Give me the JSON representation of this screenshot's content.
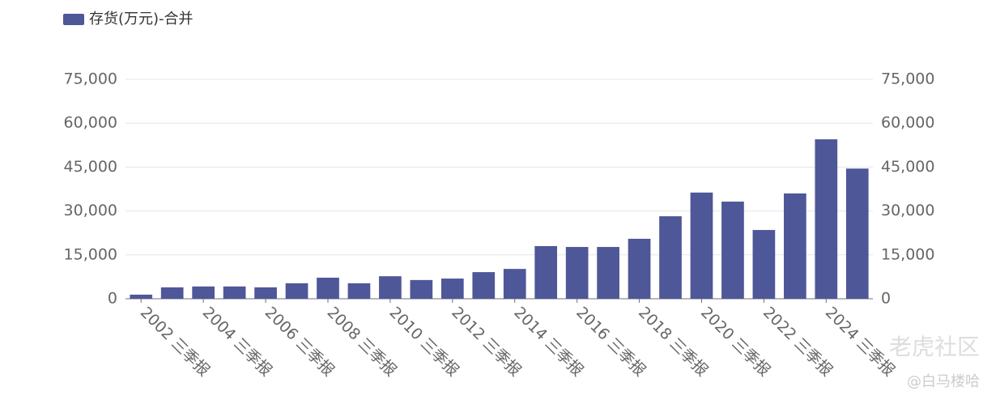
{
  "chart_data": {
    "type": "bar",
    "legend": "存货(万元)-合并",
    "watermark": "老虎社区",
    "credit": "@白马楼哈",
    "categories": [
      "2002 三季报",
      null,
      "2004 三季报",
      null,
      "2006 三季报",
      null,
      "2008 三季报",
      null,
      "2010 三季报",
      null,
      "2012 三季报",
      null,
      "2014 三季报",
      null,
      "2016 三季报",
      null,
      "2018 三季报",
      null,
      "2020 三季报",
      null,
      "2022 三季报",
      null,
      "2024 三季报",
      null
    ],
    "values": [
      1400,
      3900,
      4200,
      4200,
      3900,
      5300,
      7200,
      5300,
      7700,
      6400,
      6900,
      9100,
      10200,
      18000,
      17700,
      17700,
      20500,
      28200,
      36300,
      33200,
      23500,
      36000,
      54500,
      44500
    ],
    "color": "#4e5797",
    "ylim": [
      0,
      75000
    ],
    "yticks": [
      0,
      {
        "value": 15000,
        "label": "15,000"
      },
      {
        "value": 30000,
        "label": "30,000"
      },
      {
        "value": 45000,
        "label": "45,000"
      },
      {
        "value": 60000,
        "label": "60,000"
      },
      {
        "value": 75000,
        "label": "75,000"
      }
    ],
    "y2lim": [
      0,
      75000
    ],
    "y2ticks": [
      0,
      {
        "value": 15000,
        "label": "15,000"
      },
      {
        "value": 30000,
        "label": "30,000"
      },
      {
        "value": 45000,
        "label": "45,000"
      },
      {
        "value": 60000,
        "label": "60,000"
      },
      {
        "value": 75000,
        "label": "75,000"
      }
    ],
    "grid": true
  }
}
